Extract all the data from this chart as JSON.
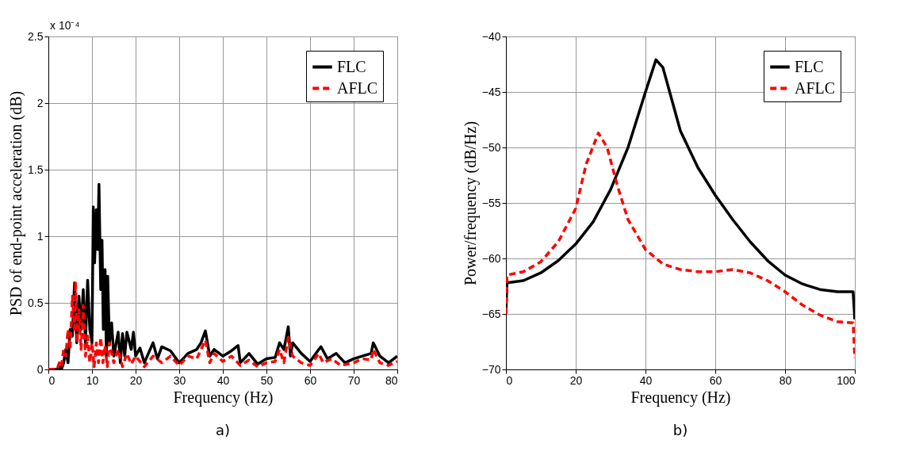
{
  "chart_data": [
    {
      "type": "line",
      "xlabel": "Frequency (Hz)",
      "ylabel": "PSD of end-point acceleration (dB)",
      "annotations": [
        "x 10⁻⁴",
        "a)"
      ],
      "xlim": [
        0,
        80
      ],
      "xticks": [
        0,
        10,
        20,
        30,
        40,
        50,
        60,
        70,
        80
      ],
      "ylim": [
        0,
        2.5
      ],
      "yticks": [
        0,
        0.5,
        1,
        1.5,
        2,
        2.5
      ],
      "grid": true,
      "legend": "top right",
      "series": [
        {
          "name": "FLC",
          "color": "#000000",
          "line_style": "solid",
          "x": [
            0,
            2,
            2.5,
            3,
            3.5,
            4,
            4.5,
            5,
            5.5,
            6,
            6.5,
            7,
            7.5,
            8,
            8.5,
            9,
            9.5,
            10,
            10.3,
            10.6,
            11,
            11.3,
            11.6,
            12,
            12.3,
            12.6,
            13,
            13.3,
            13.6,
            14,
            14.5,
            15,
            16,
            16.5,
            17,
            17.5,
            18,
            19,
            19.5,
            20,
            21,
            22,
            24,
            25,
            26,
            28,
            30,
            32,
            34,
            35,
            36,
            37,
            38,
            40,
            42,
            43.5,
            44,
            46,
            48,
            50,
            52,
            53,
            54,
            55,
            55.5,
            56,
            58,
            60,
            62,
            62.5,
            64,
            66,
            68,
            70,
            72,
            74,
            74.5,
            76,
            78,
            80
          ],
          "values": [
            0,
            0,
            0.02,
            0,
            0.05,
            0.15,
            0.05,
            0.3,
            0.25,
            0.65,
            0.2,
            0.55,
            0.3,
            0.6,
            0.2,
            0.67,
            0.3,
            0.2,
            1.22,
            0.8,
            1.2,
            0.9,
            1.39,
            0.6,
            0.97,
            0.3,
            0.75,
            0.1,
            0.7,
            0.2,
            0.35,
            0.1,
            0.28,
            0.05,
            0.27,
            0.1,
            0.28,
            0.15,
            0.28,
            0.1,
            0.16,
            0.05,
            0.2,
            0.08,
            0.17,
            0.14,
            0.05,
            0.12,
            0.15,
            0.2,
            0.29,
            0.1,
            0.15,
            0.1,
            0.14,
            0.18,
            0.05,
            0.12,
            0.04,
            0.08,
            0.09,
            0.2,
            0.15,
            0.32,
            0.1,
            0.2,
            0.12,
            0.06,
            0.15,
            0.17,
            0.08,
            0.12,
            0.05,
            0.08,
            0.1,
            0.12,
            0.2,
            0.1,
            0.05,
            0.1
          ]
        },
        {
          "name": "AFLC",
          "color": "#ff0000",
          "line_style": "dashed",
          "x": [
            0,
            2,
            2.5,
            3,
            3.5,
            4,
            4.5,
            5,
            5.5,
            6,
            6.2,
            6.6,
            7,
            7.5,
            8,
            8.5,
            9,
            9.5,
            10,
            10.5,
            11,
            11.5,
            12,
            12.5,
            13,
            13.5,
            14,
            15,
            16,
            17,
            18,
            19,
            20,
            22,
            24,
            26,
            28,
            30,
            32,
            34,
            36,
            37,
            38,
            40,
            42,
            44,
            46,
            48,
            50,
            52,
            53,
            54,
            55,
            56,
            58,
            60,
            62,
            63,
            65,
            67,
            70,
            72,
            74,
            74.5,
            76,
            78,
            80
          ],
          "values": [
            0,
            0,
            0.05,
            0.02,
            0.15,
            0.1,
            0.3,
            0.15,
            0.55,
            0.3,
            0.66,
            0.2,
            0.45,
            0.15,
            0.48,
            0.1,
            0.25,
            0.05,
            0.2,
            0.02,
            0.2,
            0.05,
            0.24,
            0.05,
            0.18,
            0.02,
            0.2,
            0.05,
            0.15,
            0.02,
            0.12,
            0.04,
            0.1,
            0.02,
            0.1,
            0.05,
            0.1,
            0.03,
            0.1,
            0.08,
            0.22,
            0.05,
            0.12,
            0.06,
            0.1,
            0.03,
            0.07,
            0.02,
            0.05,
            0.06,
            0.15,
            0.05,
            0.24,
            0.1,
            0.05,
            0.03,
            0.12,
            0.05,
            0.08,
            0.03,
            0.05,
            0.08,
            0.07,
            0.15,
            0.05,
            0.03,
            0.06
          ]
        }
      ]
    },
    {
      "type": "line",
      "xlabel": "Frequency (Hz)",
      "ylabel": "Power/frequency (dB/Hz)",
      "annotations": [
        "b)"
      ],
      "xlim": [
        0,
        100
      ],
      "xticks": [
        0,
        20,
        40,
        60,
        80,
        100
      ],
      "ylim": [
        -70,
        -40
      ],
      "yticks": [
        -70,
        -65,
        -60,
        -55,
        -50,
        -45,
        -40
      ],
      "grid": true,
      "legend": "top right",
      "series": [
        {
          "name": "FLC",
          "color": "#000000",
          "line_style": "solid",
          "x": [
            0,
            0.3,
            5,
            10,
            15,
            20,
            25,
            30,
            35,
            40,
            43,
            45,
            50,
            55,
            60,
            65,
            70,
            75,
            80,
            85,
            90,
            95,
            99.5,
            100
          ],
          "values": [
            -65,
            -62.2,
            -62,
            -61.3,
            -60.2,
            -58.7,
            -56.7,
            -53.8,
            -50,
            -45,
            -42.1,
            -42.8,
            -48.5,
            -51.8,
            -54.3,
            -56.5,
            -58.5,
            -60.2,
            -61.5,
            -62.3,
            -62.8,
            -63,
            -63,
            -65.5
          ]
        },
        {
          "name": "AFLC",
          "color": "#ff0000",
          "line_style": "dashed",
          "x": [
            0,
            0.3,
            5,
            10,
            15,
            20,
            23,
            26.5,
            29,
            32,
            35,
            40,
            45,
            50,
            55,
            60,
            65,
            70,
            75,
            80,
            85,
            90,
            95,
            99.5,
            100
          ],
          "values": [
            -65,
            -61.5,
            -61.2,
            -60.3,
            -58.5,
            -55.5,
            -51.5,
            -48.7,
            -50,
            -53.5,
            -56.5,
            -59.2,
            -60.5,
            -61,
            -61.2,
            -61.2,
            -61,
            -61.3,
            -62,
            -63,
            -64.2,
            -65.1,
            -65.7,
            -65.8,
            -69
          ]
        }
      ]
    }
  ]
}
